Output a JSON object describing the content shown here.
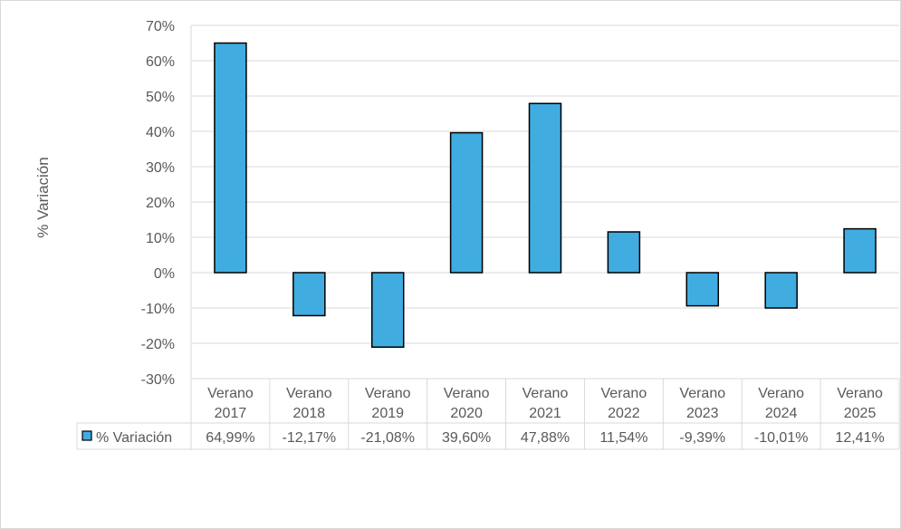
{
  "chart_data": {
    "type": "bar",
    "ylabel": "% Variación",
    "ylim": [
      -30,
      70
    ],
    "yticks": [
      70,
      60,
      50,
      40,
      30,
      20,
      10,
      0,
      -10,
      -20,
      -30
    ],
    "ytick_labels": [
      "70%",
      "60%",
      "50%",
      "40%",
      "30%",
      "20%",
      "10%",
      "0%",
      "-10%",
      "-20%",
      "-30%"
    ],
    "grid": true,
    "legend": "data-table-left",
    "categories": [
      [
        "Verano",
        "2017"
      ],
      [
        "Verano",
        "2018"
      ],
      [
        "Verano",
        "2019"
      ],
      [
        "Verano",
        "2020"
      ],
      [
        "Verano",
        "2021"
      ],
      [
        "Verano",
        "2022"
      ],
      [
        "Verano",
        "2023"
      ],
      [
        "Verano",
        "2024"
      ],
      [
        "Verano",
        "2025"
      ]
    ],
    "series": [
      {
        "name": "% Variación",
        "color": "#41ACE0",
        "values": [
          64.99,
          -12.17,
          -21.08,
          39.6,
          47.88,
          11.54,
          -9.39,
          -10.01,
          12.41
        ],
        "value_labels": [
          "64,99%",
          "-12,17%",
          "-21,08%",
          "39,60%",
          "47,88%",
          "11,54%",
          "-9,39%",
          "-10,01%",
          "12,41%"
        ]
      }
    ]
  }
}
